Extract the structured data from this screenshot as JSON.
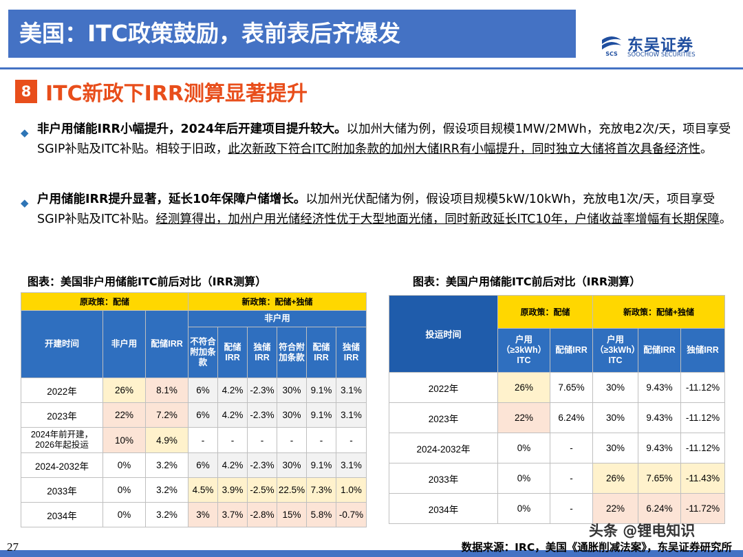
{
  "header": {
    "title": "美国：ITC政策鼓励，表前表后齐爆发",
    "logo_cn": "东吴证券",
    "logo_en": "SOOCHOW SECURITIES",
    "logo_mark_text": "SCS"
  },
  "section": {
    "number": "8",
    "title": "ITC新政下IRR测算显著提升"
  },
  "bullets": [
    {
      "bold": "非户用储能IRR小幅提升，2024年后开建项目提升较大。",
      "plain": "以加州大储为例，假设项目规模1MW/2MWh，充放电2次/天，项目享受SGIP补贴及ITC补贴。相较于旧政，",
      "underlined": "此次新政下符合ITC附加条款的加州大储IRR有小幅提升，同时独立大储将首次具备经济性",
      "tail": "。"
    },
    {
      "bold": "户用储能IRR提升显著，延长10年保障户储增长。",
      "plain": "以加州光伏配储为例，假设项目规模5kW/10kWh，充放电1次/天，项目享受SGIP补贴及ITC补贴。",
      "underlined": "经测算得出，加州户用光储经济性优于大型地面光储，同时新政延长ITC10年，户储收益率增幅有长期保障",
      "tail": "。"
    }
  ],
  "table1": {
    "caption": "图表：美国非户用储能ITC前后对比（IRR测算）",
    "group_old": "原政策：配储",
    "group_new": "新政策：配储+独储",
    "sub_group": "非户用",
    "col_time": "开建时间",
    "col_fhy": "非户用",
    "col_pcirr": "配储IRR",
    "sub_cols": [
      "不符合附加条款",
      "配储IRR",
      "独储IRR",
      "符合附加条款",
      "配储IRR",
      "独储IRR"
    ],
    "rows": [
      {
        "time": "2022年",
        "v": [
          "26%",
          "8.1%",
          "6%",
          "4.2%",
          "-2.3%",
          "30%",
          "9.1%",
          "3.1%"
        ]
      },
      {
        "time": "2023年",
        "v": [
          "22%",
          "7.2%",
          "6%",
          "4.2%",
          "-2.3%",
          "30%",
          "9.1%",
          "3.1%"
        ]
      },
      {
        "time": "2024年前开建，2026年起投运",
        "v": [
          "10%",
          "4.9%",
          "-",
          "-",
          "-",
          "-",
          "-",
          "-"
        ]
      },
      {
        "time": "2024-2032年",
        "v": [
          "0%",
          "3.2%",
          "6%",
          "4.2%",
          "-2.3%",
          "30%",
          "9.1%",
          "3.1%"
        ]
      },
      {
        "time": "2033年",
        "v": [
          "0%",
          "3.2%",
          "4.5%",
          "3.9%",
          "-2.5%",
          "22.5%",
          "7.3%",
          "1.0%"
        ]
      },
      {
        "time": "2034年",
        "v": [
          "0%",
          "3.2%",
          "3%",
          "3.7%",
          "-2.8%",
          "15%",
          "5.8%",
          "-0.7%"
        ]
      }
    ]
  },
  "table2": {
    "caption": "图表：美国户用储能ITC前后对比（IRR测算）",
    "group_old": "原政策：配储",
    "group_new": "新政策：配储+独储",
    "col_time": "投运时间",
    "sub_cols": [
      "户用（≥3kWh）ITC",
      "配储IRR",
      "户用（≥3kWh）ITC",
      "配储IRR",
      "独储IRR"
    ],
    "rows": [
      {
        "time": "2022年",
        "v": [
          "26%",
          "7.65%",
          "30%",
          "9.43%",
          "-11.12%"
        ]
      },
      {
        "time": "2023年",
        "v": [
          "22%",
          "6.24%",
          "30%",
          "9.43%",
          "-11.12%"
        ]
      },
      {
        "time": "2024-2032年",
        "v": [
          "0%",
          "-",
          "30%",
          "9.43%",
          "-11.12%"
        ]
      },
      {
        "time": "2033年",
        "v": [
          "0%",
          "-",
          "26%",
          "7.65%",
          "-11.43%"
        ]
      },
      {
        "time": "2034年",
        "v": [
          "0%",
          "-",
          "22%",
          "6.24%",
          "-11.72%"
        ]
      }
    ]
  },
  "footer": {
    "page": "27",
    "source": "数据来源：IRC，美国《通胀削减法案》，东吴证券研究所",
    "watermark": "头条 @锂电知识"
  },
  "colors": {
    "title_bar": "#4472C4",
    "accent_red": "#E84E1B",
    "header_yellow": "#FFD700",
    "header_blue": "#2F6FBF"
  }
}
